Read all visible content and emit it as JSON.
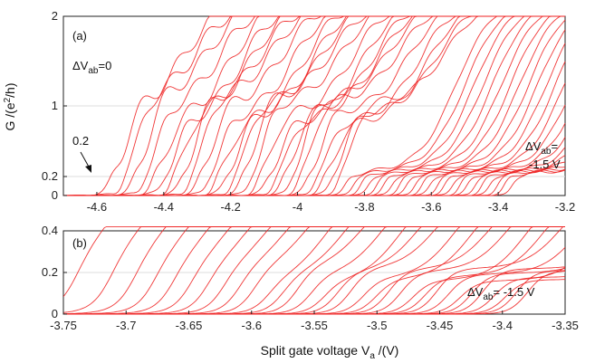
{
  "chart_data": [
    {
      "type": "line",
      "panel": "(a)",
      "xlim": [
        -4.7,
        -3.2
      ],
      "ylim": [
        0,
        2
      ],
      "xticks": [
        -4.6,
        -4.4,
        -4.2,
        -4,
        -3.8,
        -3.6,
        -3.4,
        -3.2
      ],
      "xtick_labels": [
        "-4.6",
        "-4.4",
        "-4.2",
        "-4",
        "-3.8",
        "-3.6",
        "-3.4",
        "-3.2"
      ],
      "yticks": [
        0,
        0.2,
        1,
        2
      ],
      "ytick_labels": [
        "0",
        "0.2",
        "1",
        "2"
      ],
      "ylabel_base": "G /(e",
      "ylabel_sup": "2",
      "ylabel_end": "/h)",
      "grid": "horizontal at y ticks",
      "series_count": 50,
      "series_color": "#ee2222",
      "curve_rise_x_range": [
        -4.56,
        -3.36
      ],
      "plateau_levels": [
        0.2,
        1
      ],
      "annotations": {
        "panel_label": "(a)",
        "top_left": {
          "delta": "ΔV",
          "sub": "ab",
          "rest": "=0"
        },
        "arrow_label": "0.2",
        "right": {
          "delta": "ΔV",
          "sub": "ab",
          "rest": "=",
          "line2": "-1.5 V"
        }
      }
    },
    {
      "type": "line",
      "panel": "(b)",
      "xlim": [
        -3.75,
        -3.35
      ],
      "ylim": [
        0,
        0.4
      ],
      "xticks": [
        -3.75,
        -3.7,
        -3.65,
        -3.6,
        -3.55,
        -3.5,
        -3.45,
        -3.4,
        -3.35
      ],
      "xtick_labels": [
        "-3.75",
        "-3.7",
        "-3.65",
        "-3.6",
        "-3.55",
        "-3.5",
        "-3.45",
        "-3.4",
        "-3.35"
      ],
      "yticks": [
        0,
        0.2,
        0.4
      ],
      "ytick_labels": [
        "0",
        "0.2",
        "0.4"
      ],
      "xlabel_base": "Split gate voltage V",
      "xlabel_sub": "a",
      "xlabel_end": " /(V)",
      "grid": "horizontal at y ticks",
      "series_count": 32,
      "series_color": "#ee2222",
      "curve_rise_x_range": [
        -3.74,
        -3.38
      ],
      "plateau_levels": [
        0.2
      ],
      "annotations": {
        "panel_label": "(b)",
        "right": {
          "delta": "ΔV",
          "sub": "ab",
          "rest": "= -1.5 V"
        }
      }
    }
  ]
}
